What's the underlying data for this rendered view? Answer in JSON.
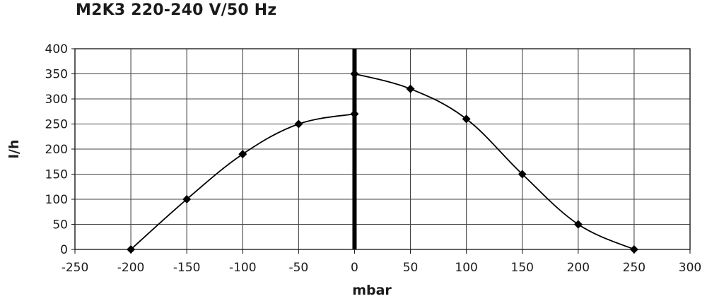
{
  "chart_data": {
    "type": "line",
    "title": "M2K3 220-240 V/50 Hz",
    "xlabel": "mbar",
    "ylabel": "l/h",
    "xlim": [
      -250,
      300
    ],
    "ylim": [
      0,
      400
    ],
    "xticks": [
      -250,
      -200,
      -150,
      -100,
      -50,
      0,
      50,
      100,
      150,
      200,
      250,
      300
    ],
    "yticks": [
      0,
      50,
      100,
      150,
      200,
      250,
      300,
      350,
      400
    ],
    "grid": true,
    "legend": "none",
    "reference_line_x": 0,
    "series": [
      {
        "color": "#000000",
        "points": [
          [
            -200,
            0
          ],
          [
            -150,
            100
          ],
          [
            -100,
            190
          ],
          [
            -50,
            250
          ],
          [
            0,
            270
          ]
        ]
      },
      {
        "color": "#000000",
        "points": [
          [
            0,
            350
          ],
          [
            50,
            320
          ],
          [
            100,
            260
          ],
          [
            150,
            150
          ],
          [
            200,
            50
          ],
          [
            250,
            0
          ]
        ]
      }
    ]
  }
}
